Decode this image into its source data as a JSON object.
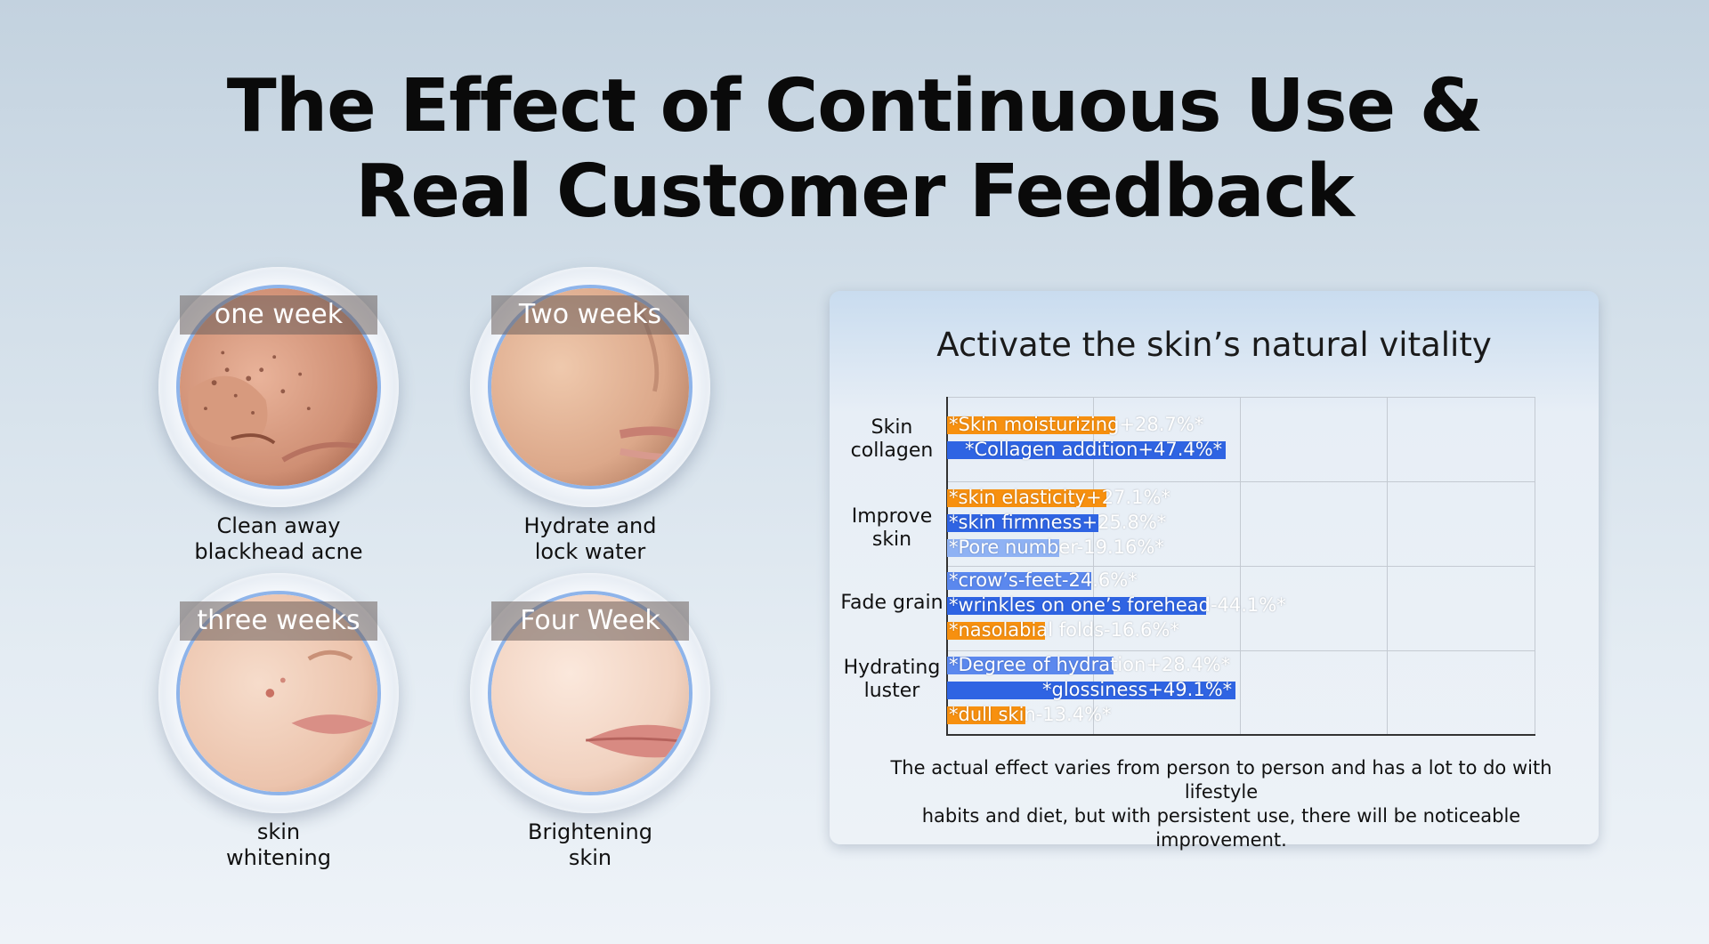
{
  "header": {
    "title_line1": "The Effect of Continuous Use &",
    "title_line2": "Real Customer Feedback"
  },
  "weeks": [
    {
      "band": "one week",
      "caption_line1": "Clean away",
      "caption_line2": "blackhead acne"
    },
    {
      "band": "Two weeks",
      "caption_line1": "Hydrate and",
      "caption_line2": "lock water"
    },
    {
      "band": "three weeks",
      "caption_line1": "skin",
      "caption_line2": "whitening"
    },
    {
      "band": "Four Week",
      "caption_line1": "Brightening",
      "caption_line2": "skin"
    }
  ],
  "footnote_line1": "The actual effect varies from person to person and has a lot to do with lifestyle",
  "footnote_line2": "habits and diet, but with persistent use, there will be noticeable improvement.",
  "colors": {
    "orange": "#f7900f",
    "blue": "#2f64e3",
    "light_blue": "#8fb2f4",
    "mid_blue": "#5b88ee"
  },
  "chart_data": {
    "type": "bar",
    "orientation": "horizontal",
    "title": "Activate the skin’s natural vitality",
    "xlim": [
      0,
      100
    ],
    "grid": true,
    "categories": [
      {
        "label_line1": "Skin",
        "label_line2": "collagen"
      },
      {
        "label_line1": "Improve",
        "label_line2": "skin"
      },
      {
        "label_line1": "Fade grain",
        "label_line2": ""
      },
      {
        "label_line1": "Hydrating",
        "label_line2": "luster"
      }
    ],
    "bars": [
      {
        "category": 0,
        "label": "*Skin moisturizing+28.7%*",
        "value": 28.7,
        "color": "orange"
      },
      {
        "category": 0,
        "label": "*Collagen addition+47.4%*",
        "value": 47.4,
        "color": "blue"
      },
      {
        "category": 1,
        "label": "*skin elasticity+27.1%*",
        "value": 27.1,
        "color": "orange"
      },
      {
        "category": 1,
        "label": "*skin firmness+25.8%*",
        "value": 25.8,
        "color": "blue"
      },
      {
        "category": 1,
        "label": "*Pore number-19.16%*",
        "value": 19.16,
        "color": "light_blue"
      },
      {
        "category": 2,
        "label": "*crow’s-feet-24.6%*",
        "value": 24.6,
        "color": "mid_blue"
      },
      {
        "category": 2,
        "label": "*wrinkles on one’s forehead-44.1%*",
        "value": 44.1,
        "color": "blue"
      },
      {
        "category": 2,
        "label": "*nasolabial folds-16.6%*",
        "value": 16.6,
        "color": "orange"
      },
      {
        "category": 3,
        "label": "*Degree of hydration+28.4%*",
        "value": 28.4,
        "color": "mid_blue"
      },
      {
        "category": 3,
        "label": "*glossiness+49.1%*",
        "value": 49.1,
        "color": "blue"
      },
      {
        "category": 3,
        "label": "*dull skin-13.4%*",
        "value": 13.4,
        "color": "orange"
      }
    ]
  }
}
